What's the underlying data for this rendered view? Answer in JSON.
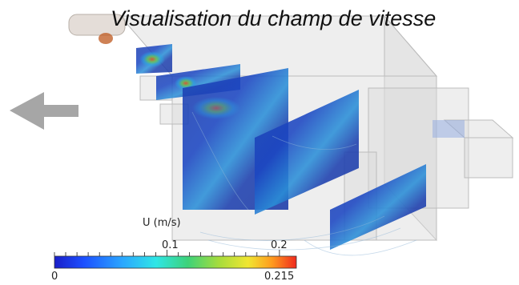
{
  "title": "Visualisation du champ de vitesse",
  "colorbar": {
    "label": "U (m/s)",
    "min_label": "0",
    "mid_label": "0.1",
    "high_label": "0.2",
    "max_label": "0.215",
    "colors": [
      "#1a1ec8",
      "#1c4fff",
      "#2aa6ff",
      "#2ee6e6",
      "#3cd27a",
      "#a6dc3c",
      "#f0e632",
      "#ff9a1e",
      "#f02a1e"
    ]
  },
  "colors": {
    "box_face": "#d8d8d8",
    "box_edge": "#b8b8b8",
    "arrow": "#a6a6a6",
    "field_low": "#1b3fae",
    "field_mid": "#2aa6e0",
    "field_high": "#e05a2a"
  },
  "icons": {
    "flow_direction": "left-arrow-icon"
  }
}
